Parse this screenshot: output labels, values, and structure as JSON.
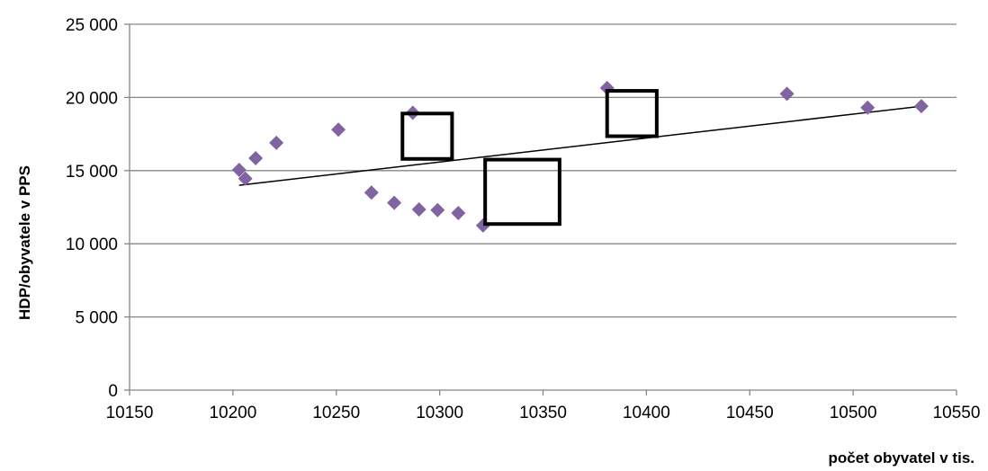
{
  "chart_data": {
    "type": "scatter",
    "title": "",
    "xlabel": "počet obyvatel v tis.",
    "ylabel": "HDP/obyvatele v PPS",
    "xlim": [
      10150,
      10550
    ],
    "ylim": [
      0,
      25000
    ],
    "x_ticks": [
      10150,
      10200,
      10250,
      10300,
      10350,
      10400,
      10450,
      10500,
      10550
    ],
    "x_tick_labels": [
      "10150",
      "10200",
      "10250",
      "10300",
      "10350",
      "10400",
      "10450",
      "10500",
      "10550"
    ],
    "y_ticks": [
      0,
      5000,
      10000,
      15000,
      20000,
      25000
    ],
    "y_tick_labels": [
      "0",
      "5 000",
      "10 000",
      "15 000",
      "20 000",
      "25 000"
    ],
    "grid": "horizontal",
    "legend": "none",
    "marker": "diamond",
    "marker_color": "#8064A2",
    "points": [
      {
        "x": 10203,
        "y": 15050
      },
      {
        "x": 10206,
        "y": 14450
      },
      {
        "x": 10211,
        "y": 15850
      },
      {
        "x": 10221,
        "y": 16900
      },
      {
        "x": 10251,
        "y": 17800
      },
      {
        "x": 10267,
        "y": 13500
      },
      {
        "x": 10278,
        "y": 12800
      },
      {
        "x": 10287,
        "y": 18950
      },
      {
        "x": 10290,
        "y": 12350
      },
      {
        "x": 10299,
        "y": 12300
      },
      {
        "x": 10309,
        "y": 12100
      },
      {
        "x": 10321,
        "y": 11250
      },
      {
        "x": 10381,
        "y": 20650
      },
      {
        "x": 10468,
        "y": 20250
      },
      {
        "x": 10507,
        "y": 19300
      },
      {
        "x": 10533,
        "y": 19400
      }
    ],
    "trendline": {
      "type": "linear",
      "x": [
        10203,
        10533
      ],
      "y": [
        14000,
        19400
      ],
      "color": "#000000"
    },
    "annotation_boxes": [
      {
        "x_range": [
          10282,
          10306
        ],
        "y_range": [
          15800,
          18900
        ]
      },
      {
        "x_range": [
          10322,
          10358
        ],
        "y_range": [
          11350,
          15750
        ]
      },
      {
        "x_range": [
          10381,
          10405
        ],
        "y_range": [
          17350,
          20450
        ]
      }
    ]
  }
}
